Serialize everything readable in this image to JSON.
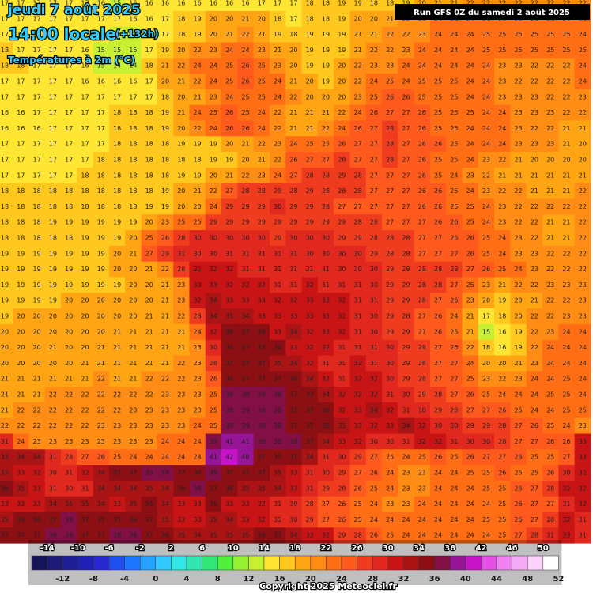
{
  "header": {
    "date": "jeudi 7 août 2025",
    "time": "14:00 locale",
    "lead": "(+132h)",
    "subtitle": "Températures à 2m (°C)",
    "run": "Run GFS 0Z du samedi 2 août 2025"
  },
  "footer": {
    "copyright": "Copyright 2025 Meteociel.fr"
  },
  "legend": {
    "values": [
      -14,
      -12,
      -10,
      -8,
      -6,
      -4,
      -2,
      0,
      2,
      4,
      6,
      8,
      10,
      12,
      14,
      16,
      18,
      20,
      22,
      24,
      26,
      28,
      30,
      32,
      34,
      36,
      38,
      40,
      42,
      44,
      46,
      48,
      50,
      52
    ],
    "colors": [
      "#14145a",
      "#1c1c78",
      "#1e1e96",
      "#2020b4",
      "#2828d2",
      "#1e50f0",
      "#1e78ff",
      "#28a0ff",
      "#32c8ff",
      "#32e6e6",
      "#32e6b4",
      "#32e678",
      "#50f03c",
      "#96f032",
      "#c8f032",
      "#ffe632",
      "#ffc81e",
      "#ffa514",
      "#ff8c14",
      "#ff6e14",
      "#ff5a1e",
      "#f03c1e",
      "#e1281e",
      "#c81414",
      "#aa1414",
      "#8c0f14",
      "#820f46",
      "#961496",
      "#c814c8",
      "#e650e6",
      "#f082f0",
      "#f5aaf5",
      "#fad2fa",
      "#ffffff"
    ]
  },
  "grid": {
    "rows": [
      [
        17,
        17,
        17,
        17,
        17,
        17,
        16,
        15,
        16,
        16,
        16,
        16,
        16,
        16,
        16,
        16,
        17,
        17,
        17,
        18,
        18,
        19,
        19,
        18,
        18,
        19,
        20,
        21,
        21,
        22,
        22,
        22,
        22,
        22,
        22,
        22,
        22
      ],
      [
        17,
        17,
        17,
        17,
        17,
        17,
        17,
        17,
        16,
        16,
        17,
        18,
        19,
        20,
        20,
        21,
        20,
        18,
        17,
        18,
        18,
        19,
        20,
        20,
        21,
        22,
        23,
        24,
        24,
        24,
        24,
        25,
        25,
        25,
        24,
        24,
        24
      ],
      [
        17,
        17,
        17,
        17,
        17,
        17,
        16,
        15,
        15,
        16,
        17,
        18,
        19,
        20,
        21,
        22,
        21,
        19,
        18,
        19,
        19,
        19,
        21,
        21,
        22,
        22,
        23,
        24,
        24,
        24,
        25,
        25,
        25,
        25,
        25,
        25,
        24
      ],
      [
        18,
        17,
        17,
        17,
        17,
        16,
        15,
        15,
        15,
        17,
        19,
        20,
        22,
        23,
        24,
        24,
        23,
        21,
        20,
        19,
        19,
        19,
        21,
        22,
        22,
        23,
        24,
        24,
        24,
        24,
        25,
        25,
        25,
        25,
        25,
        25,
        25
      ],
      [
        18,
        18,
        17,
        17,
        17,
        16,
        15,
        14,
        14,
        18,
        21,
        22,
        24,
        24,
        25,
        26,
        25,
        23,
        20,
        19,
        19,
        20,
        22,
        23,
        23,
        24,
        24,
        24,
        24,
        24,
        24,
        23,
        23,
        22,
        22,
        22,
        24
      ],
      [
        17,
        17,
        17,
        17,
        17,
        16,
        16,
        16,
        16,
        17,
        20,
        21,
        22,
        24,
        25,
        26,
        25,
        24,
        21,
        20,
        19,
        20,
        22,
        24,
        25,
        24,
        25,
        25,
        25,
        24,
        24,
        23,
        22,
        22,
        22,
        22,
        24
      ],
      [
        17,
        17,
        17,
        17,
        17,
        17,
        17,
        17,
        17,
        17,
        18,
        20,
        21,
        23,
        24,
        25,
        25,
        24,
        22,
        20,
        20,
        20,
        23,
        25,
        26,
        26,
        25,
        25,
        25,
        24,
        24,
        23,
        23,
        23,
        22,
        22,
        23
      ],
      [
        16,
        16,
        17,
        17,
        17,
        17,
        17,
        18,
        18,
        18,
        19,
        21,
        24,
        25,
        26,
        25,
        24,
        22,
        21,
        21,
        21,
        22,
        24,
        26,
        27,
        27,
        26,
        25,
        25,
        25,
        24,
        24,
        23,
        23,
        23,
        22,
        22
      ],
      [
        16,
        16,
        16,
        17,
        17,
        17,
        17,
        18,
        18,
        18,
        19,
        20,
        22,
        24,
        26,
        26,
        24,
        22,
        21,
        21,
        22,
        24,
        26,
        27,
        28,
        27,
        26,
        25,
        25,
        24,
        24,
        24,
        23,
        22,
        22,
        21,
        21
      ],
      [
        17,
        17,
        17,
        17,
        17,
        17,
        17,
        18,
        18,
        18,
        18,
        19,
        19,
        19,
        20,
        21,
        22,
        23,
        24,
        25,
        25,
        26,
        27,
        27,
        28,
        27,
        26,
        26,
        25,
        24,
        24,
        24,
        23,
        23,
        23,
        21,
        20
      ],
      [
        17,
        17,
        17,
        17,
        17,
        17,
        18,
        18,
        18,
        18,
        18,
        18,
        18,
        19,
        19,
        20,
        21,
        22,
        26,
        27,
        27,
        28,
        27,
        27,
        28,
        27,
        26,
        25,
        25,
        24,
        23,
        22,
        21,
        20,
        20,
        20,
        20
      ],
      [
        17,
        17,
        17,
        17,
        17,
        18,
        18,
        18,
        18,
        18,
        18,
        19,
        19,
        20,
        21,
        22,
        23,
        24,
        27,
        28,
        28,
        29,
        28,
        27,
        27,
        27,
        26,
        25,
        24,
        23,
        22,
        21,
        21,
        21,
        21,
        21,
        21
      ],
      [
        18,
        18,
        18,
        18,
        18,
        18,
        18,
        18,
        18,
        18,
        19,
        20,
        21,
        22,
        27,
        28,
        28,
        29,
        28,
        29,
        28,
        28,
        28,
        27,
        27,
        27,
        26,
        26,
        25,
        24,
        23,
        22,
        22,
        21,
        21,
        21,
        22
      ],
      [
        18,
        18,
        18,
        18,
        18,
        18,
        18,
        18,
        18,
        19,
        19,
        20,
        20,
        24,
        29,
        29,
        29,
        30,
        29,
        29,
        28,
        27,
        27,
        27,
        27,
        27,
        26,
        26,
        25,
        25,
        24,
        23,
        22,
        22,
        22,
        22,
        22
      ],
      [
        18,
        18,
        18,
        19,
        19,
        19,
        19,
        19,
        19,
        20,
        23,
        25,
        25,
        29,
        29,
        29,
        29,
        29,
        29,
        29,
        29,
        29,
        28,
        28,
        27,
        27,
        27,
        26,
        26,
        25,
        24,
        23,
        22,
        22,
        21,
        21,
        22
      ],
      [
        18,
        18,
        18,
        18,
        18,
        19,
        19,
        19,
        20,
        25,
        26,
        28,
        30,
        30,
        30,
        30,
        30,
        29,
        30,
        30,
        30,
        29,
        29,
        28,
        28,
        28,
        27,
        27,
        26,
        26,
        25,
        24,
        23,
        22,
        21,
        21,
        22
      ],
      [
        19,
        19,
        19,
        19,
        19,
        19,
        19,
        20,
        21,
        27,
        29,
        31,
        30,
        30,
        31,
        31,
        31,
        31,
        31,
        30,
        30,
        30,
        30,
        29,
        28,
        28,
        27,
        27,
        27,
        26,
        25,
        24,
        23,
        23,
        22,
        22,
        22
      ],
      [
        19,
        19,
        19,
        19,
        19,
        19,
        19,
        20,
        20,
        21,
        22,
        28,
        32,
        32,
        32,
        31,
        31,
        31,
        31,
        31,
        31,
        30,
        30,
        30,
        29,
        28,
        28,
        28,
        28,
        27,
        26,
        25,
        24,
        23,
        22,
        22,
        22
      ],
      [
        19,
        19,
        19,
        19,
        19,
        19,
        19,
        19,
        20,
        20,
        21,
        23,
        33,
        33,
        32,
        32,
        32,
        31,
        31,
        32,
        31,
        31,
        31,
        30,
        29,
        29,
        28,
        28,
        27,
        25,
        23,
        21,
        22,
        22,
        23,
        23,
        23
      ],
      [
        19,
        19,
        19,
        19,
        20,
        20,
        20,
        20,
        20,
        20,
        21,
        23,
        32,
        34,
        33,
        33,
        33,
        32,
        32,
        33,
        33,
        32,
        31,
        31,
        29,
        29,
        28,
        27,
        26,
        23,
        20,
        19,
        20,
        21,
        22,
        22,
        23
      ],
      [
        19,
        20,
        20,
        20,
        20,
        20,
        20,
        20,
        20,
        21,
        21,
        22,
        28,
        34,
        35,
        34,
        33,
        33,
        33,
        33,
        33,
        32,
        31,
        30,
        29,
        28,
        27,
        26,
        24,
        21,
        17,
        18,
        20,
        22,
        22,
        23,
        23
      ],
      [
        20,
        20,
        20,
        20,
        20,
        20,
        20,
        21,
        21,
        21,
        21,
        21,
        24,
        32,
        36,
        37,
        36,
        33,
        34,
        32,
        33,
        32,
        31,
        30,
        29,
        29,
        27,
        26,
        25,
        21,
        15,
        16,
        19,
        22,
        23,
        24,
        24
      ],
      [
        20,
        20,
        20,
        21,
        20,
        20,
        21,
        21,
        21,
        21,
        21,
        21,
        23,
        30,
        36,
        37,
        37,
        36,
        33,
        32,
        32,
        31,
        31,
        31,
        30,
        29,
        28,
        27,
        26,
        22,
        18,
        16,
        19,
        22,
        24,
        24,
        24
      ],
      [
        20,
        20,
        20,
        20,
        20,
        21,
        21,
        21,
        21,
        21,
        21,
        22,
        23,
        28,
        37,
        37,
        37,
        35,
        34,
        32,
        31,
        31,
        32,
        31,
        30,
        29,
        28,
        27,
        27,
        24,
        20,
        20,
        21,
        23,
        24,
        24,
        24
      ],
      [
        21,
        21,
        21,
        21,
        21,
        21,
        22,
        21,
        21,
        22,
        22,
        22,
        23,
        26,
        36,
        37,
        37,
        37,
        36,
        34,
        32,
        31,
        32,
        32,
        30,
        29,
        28,
        27,
        27,
        25,
        23,
        22,
        23,
        24,
        24,
        25,
        24
      ],
      [
        21,
        21,
        21,
        22,
        22,
        22,
        22,
        22,
        22,
        22,
        23,
        23,
        23,
        25,
        38,
        38,
        39,
        38,
        37,
        37,
        34,
        32,
        32,
        32,
        31,
        30,
        29,
        28,
        27,
        26,
        25,
        24,
        24,
        24,
        25,
        25,
        24
      ],
      [
        21,
        22,
        22,
        22,
        22,
        22,
        22,
        22,
        23,
        23,
        23,
        23,
        23,
        25,
        38,
        39,
        39,
        38,
        37,
        37,
        36,
        32,
        33,
        34,
        32,
        31,
        30,
        29,
        28,
        27,
        27,
        26,
        25,
        24,
        24,
        25,
        25
      ],
      [
        22,
        22,
        22,
        22,
        22,
        22,
        23,
        23,
        23,
        23,
        23,
        23,
        24,
        25,
        39,
        39,
        39,
        38,
        37,
        37,
        36,
        35,
        33,
        32,
        33,
        34,
        32,
        30,
        30,
        29,
        29,
        28,
        27,
        26,
        25,
        24,
        23
      ],
      [
        31,
        24,
        23,
        23,
        23,
        23,
        23,
        23,
        23,
        23,
        24,
        24,
        24,
        39,
        41,
        41,
        39,
        38,
        38,
        37,
        34,
        33,
        32,
        30,
        30,
        31,
        32,
        32,
        31,
        30,
        30,
        28,
        27,
        27,
        26,
        26,
        33
      ],
      [
        35,
        34,
        34,
        31,
        28,
        27,
        26,
        25,
        24,
        24,
        24,
        24,
        24,
        41,
        42,
        40,
        37,
        37,
        37,
        34,
        31,
        30,
        29,
        27,
        25,
        24,
        25,
        26,
        25,
        26,
        27,
        27,
        26,
        25,
        25,
        27,
        33
      ],
      [
        35,
        33,
        32,
        30,
        31,
        32,
        34,
        37,
        37,
        39,
        38,
        37,
        36,
        39,
        37,
        37,
        37,
        35,
        33,
        31,
        30,
        29,
        27,
        26,
        24,
        23,
        23,
        24,
        24,
        25,
        25,
        26,
        25,
        25,
        26,
        30,
        32
      ],
      [
        36,
        35,
        33,
        31,
        30,
        31,
        34,
        34,
        34,
        35,
        34,
        36,
        38,
        37,
        36,
        35,
        35,
        34,
        33,
        31,
        29,
        28,
        26,
        25,
        24,
        23,
        23,
        24,
        24,
        24,
        25,
        25,
        26,
        27,
        28,
        32,
        32
      ],
      [
        33,
        33,
        33,
        34,
        35,
        35,
        34,
        33,
        35,
        36,
        34,
        33,
        33,
        36,
        33,
        33,
        32,
        31,
        30,
        28,
        27,
        26,
        25,
        24,
        23,
        23,
        24,
        24,
        24,
        24,
        24,
        25,
        26,
        27,
        27,
        31,
        32
      ],
      [
        35,
        36,
        36,
        37,
        38,
        37,
        37,
        37,
        36,
        37,
        35,
        33,
        33,
        35,
        34,
        33,
        32,
        31,
        30,
        29,
        27,
        26,
        25,
        24,
        24,
        24,
        24,
        24,
        24,
        24,
        25,
        25,
        26,
        27,
        28,
        32,
        31
      ],
      [
        37,
        37,
        37,
        38,
        38,
        37,
        37,
        38,
        38,
        37,
        36,
        35,
        34,
        35,
        35,
        35,
        36,
        37,
        34,
        33,
        32,
        29,
        28,
        26,
        25,
        24,
        24,
        24,
        24,
        24,
        24,
        25,
        27,
        28,
        31,
        33,
        31
      ]
    ]
  }
}
